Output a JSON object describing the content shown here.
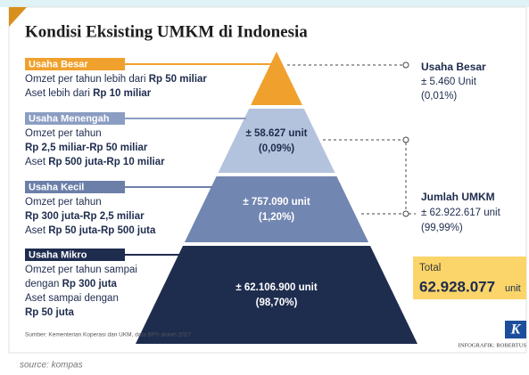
{
  "title": "Kondisi Eksisting UMKM di Indonesia",
  "tiers": [
    {
      "name": "Usaha Besar",
      "lines": [
        {
          "normal": "Omzet per tahun lebih dari ",
          "bold": "Rp 50 miliar"
        },
        {
          "normal": "Aset lebih dari ",
          "bold": "Rp 10 miliar"
        }
      ]
    },
    {
      "name": "Usaha Menengah",
      "count": "± 58.627 unit",
      "share": "(0,09%)",
      "lines": [
        {
          "normal": "Omzet per tahun"
        },
        {
          "bold": "Rp 2,5 miliar-Rp 50 miliar"
        },
        {
          "normal": "Aset ",
          "bold": "Rp 500 juta-Rp 10 miliar"
        }
      ]
    },
    {
      "name": "Usaha Kecil",
      "count": "± 757.090 unit",
      "share": "(1,20%)",
      "lines": [
        {
          "normal": "Omzet per tahun"
        },
        {
          "bold": "Rp 300 juta-Rp 2,5 miliar"
        },
        {
          "normal": "Aset ",
          "bold": "Rp 50 juta-Rp 500 juta"
        }
      ]
    },
    {
      "name": "Usaha Mikro",
      "count": "± 62.106.900 unit",
      "share": "(98,70%)",
      "lines": [
        {
          "normal": "Omzet per tahun sampai"
        },
        {
          "normal": "dengan ",
          "bold": "Rp 300 juta"
        },
        {
          "normal": "Aset sampai dengan"
        },
        {
          "bold": "Rp 50 juta"
        }
      ]
    }
  ],
  "besar_summary": {
    "name": "Usaha Besar",
    "count": "± 5.460 Unit",
    "share": "(0,01%)"
  },
  "umkm_summary": {
    "name": "Jumlah UMKM",
    "count": "± 62.922.617 unit",
    "share": "(99,99%)"
  },
  "total": {
    "label": "Total",
    "value": "62.928.077",
    "unit": "unit"
  },
  "source_note": "Sumber: Kementerian Koperasi dan UKM, data BPS diolah 2017",
  "credit": "INFOGRAFIK: ROBERTUS",
  "logo": "K",
  "caption": "source: kompas"
}
